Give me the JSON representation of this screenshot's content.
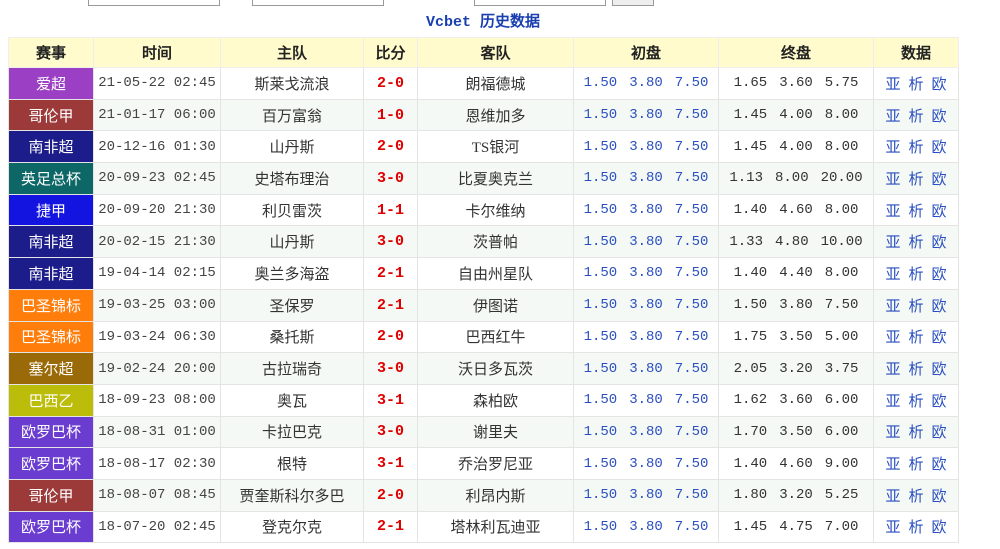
{
  "title": "Vcbet 历史数据",
  "header": [
    "赛事",
    "时间",
    "主队",
    "比分",
    "客队",
    "初盘",
    "终盘",
    "数据"
  ],
  "data_links": [
    "亚",
    "析",
    "欧"
  ],
  "rows": [
    {
      "league": "爱超",
      "color": "#9b3fc4",
      "time": "21-05-22 02:45",
      "home": "斯莱戈流浪",
      "score": "2-0",
      "away": "朗福德城",
      "initial": [
        "1.50",
        "3.80",
        "7.50"
      ],
      "final": [
        "1.65",
        "3.60",
        "5.75"
      ]
    },
    {
      "league": "哥伦甲",
      "color": "#9c3a3a",
      "time": "21-01-17 06:00",
      "home": "百万富翁",
      "score": "1-0",
      "away": "恩维加多",
      "initial": [
        "1.50",
        "3.80",
        "7.50"
      ],
      "final": [
        "1.45",
        "4.00",
        "8.00"
      ]
    },
    {
      "league": "南非超",
      "color": "#1c1c8a",
      "time": "20-12-16 01:30",
      "home": "山丹斯",
      "score": "2-0",
      "away": "TS银河",
      "initial": [
        "1.50",
        "3.80",
        "7.50"
      ],
      "final": [
        "1.45",
        "4.00",
        "8.00"
      ]
    },
    {
      "league": "英足总杯",
      "color": "#0d6767",
      "time": "20-09-23 02:45",
      "home": "史塔布理治",
      "score": "3-0",
      "away": "比夏奥克兰",
      "initial": [
        "1.50",
        "3.80",
        "7.50"
      ],
      "final": [
        "1.13",
        "8.00",
        "20.00"
      ]
    },
    {
      "league": "捷甲",
      "color": "#1414e0",
      "time": "20-09-20 21:30",
      "home": "利贝雷茨",
      "score": "1-1",
      "away": "卡尔维纳",
      "initial": [
        "1.50",
        "3.80",
        "7.50"
      ],
      "final": [
        "1.40",
        "4.60",
        "8.00"
      ]
    },
    {
      "league": "南非超",
      "color": "#1c1c8a",
      "time": "20-02-15 21:30",
      "home": "山丹斯",
      "score": "3-0",
      "away": "茨普帕",
      "initial": [
        "1.50",
        "3.80",
        "7.50"
      ],
      "final": [
        "1.33",
        "4.80",
        "10.00"
      ]
    },
    {
      "league": "南非超",
      "color": "#1c1c8a",
      "time": "19-04-14 02:15",
      "home": "奥兰多海盗",
      "score": "2-1",
      "away": "自由州星队",
      "initial": [
        "1.50",
        "3.80",
        "7.50"
      ],
      "final": [
        "1.40",
        "4.40",
        "8.00"
      ]
    },
    {
      "league": "巴圣锦标",
      "color": "#ff7d0a",
      "time": "19-03-25 03:00",
      "home": "圣保罗",
      "score": "2-1",
      "away": "伊图诺",
      "initial": [
        "1.50",
        "3.80",
        "7.50"
      ],
      "final": [
        "1.50",
        "3.80",
        "7.50"
      ]
    },
    {
      "league": "巴圣锦标",
      "color": "#ff7d0a",
      "time": "19-03-24 06:30",
      "home": "桑托斯",
      "score": "2-0",
      "away": "巴西红牛",
      "initial": [
        "1.50",
        "3.80",
        "7.50"
      ],
      "final": [
        "1.75",
        "3.50",
        "5.00"
      ]
    },
    {
      "league": "塞尔超",
      "color": "#9a6a08",
      "time": "19-02-24 20:00",
      "home": "古拉瑞奇",
      "score": "3-0",
      "away": "沃日多瓦茨",
      "initial": [
        "1.50",
        "3.80",
        "7.50"
      ],
      "final": [
        "2.05",
        "3.20",
        "3.75"
      ]
    },
    {
      "league": "巴西乙",
      "color": "#bcbc0a",
      "time": "18-09-23 08:00",
      "home": "奥瓦",
      "score": "3-1",
      "away": "森柏欧",
      "initial": [
        "1.50",
        "3.80",
        "7.50"
      ],
      "final": [
        "1.62",
        "3.60",
        "6.00"
      ]
    },
    {
      "league": "欧罗巴杯",
      "color": "#6a3cd0",
      "time": "18-08-31 01:00",
      "home": "卡拉巴克",
      "score": "3-0",
      "away": "谢里夫",
      "initial": [
        "1.50",
        "3.80",
        "7.50"
      ],
      "final": [
        "1.70",
        "3.50",
        "6.00"
      ]
    },
    {
      "league": "欧罗巴杯",
      "color": "#6a3cd0",
      "time": "18-08-17 02:30",
      "home": "根特",
      "score": "3-1",
      "away": "乔治罗尼亚",
      "initial": [
        "1.50",
        "3.80",
        "7.50"
      ],
      "final": [
        "1.40",
        "4.60",
        "9.00"
      ]
    },
    {
      "league": "哥伦甲",
      "color": "#9c3a3a",
      "time": "18-08-07 08:45",
      "home": "贾奎斯科尔多巴",
      "score": "2-0",
      "away": "利昂内斯",
      "initial": [
        "1.50",
        "3.80",
        "7.50"
      ],
      "final": [
        "1.80",
        "3.20",
        "5.25"
      ]
    },
    {
      "league": "欧罗巴杯",
      "color": "#6a3cd0",
      "time": "18-07-20 02:45",
      "home": "登克尔克",
      "score": "2-1",
      "away": "塔林利瓦迪亚",
      "initial": [
        "1.50",
        "3.80",
        "7.50"
      ],
      "final": [
        "1.45",
        "4.75",
        "7.00"
      ]
    }
  ]
}
